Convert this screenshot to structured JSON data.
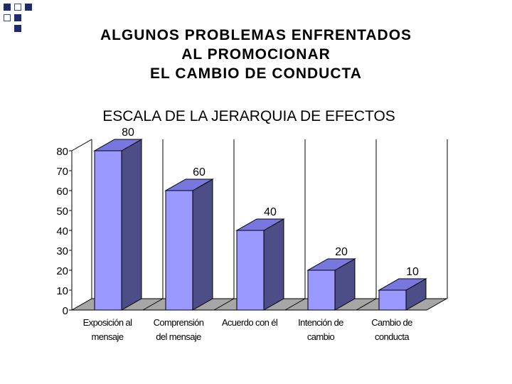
{
  "slide": {
    "title_lines": [
      "ALGUNOS PROBLEMAS ENFRENTADOS",
      "AL PROMOCIONAR",
      "EL CAMBIO DE CONDUCTA"
    ]
  },
  "colors": {
    "bar_front": "#9999ff",
    "bar_top": "#7777dd",
    "bar_side": "#4d4d88",
    "floor": "#a6a6a6",
    "corner_square_fill": "#1f2b6f",
    "corner_square_outline": "#3a4a8a"
  },
  "chart_data": {
    "type": "bar",
    "title": "ESCALA DE LA JERARQUIA DE EFECTOS",
    "categories": [
      [
        "Exposición al",
        "mensaje"
      ],
      [
        "Comprensión",
        "del mensaje"
      ],
      [
        "Acuerdo con él"
      ],
      [
        "Intención de",
        "cambio"
      ],
      [
        "Cambio de",
        "conducta"
      ]
    ],
    "values": [
      80,
      60,
      40,
      20,
      10
    ],
    "data_labels": [
      "80",
      "60",
      "40",
      "20",
      "10"
    ],
    "ylim": [
      0,
      80
    ],
    "yticks": [
      0,
      10,
      20,
      30,
      40,
      50,
      60,
      70,
      80
    ],
    "grid": true,
    "style": "3d",
    "legend": "none"
  }
}
